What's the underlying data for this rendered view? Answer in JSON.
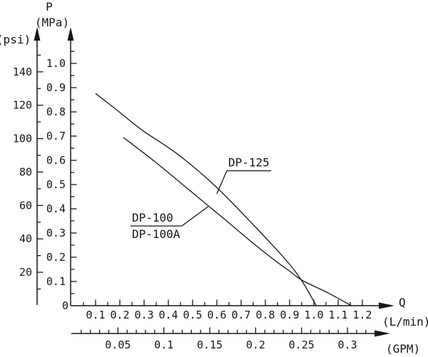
{
  "page": {
    "background": "#ffffff",
    "ink": "#161616"
  },
  "chart_data": {
    "type": "line",
    "title": "",
    "description": "Pump pressure vs flow performance curves",
    "grid": "off",
    "legend_position": "inline-labels-with-leader-lines",
    "origin_label": "0",
    "y_axis_primary": {
      "name": "P",
      "unit": "(MPa)",
      "range": [
        0,
        1.08
      ],
      "major_tick_values": [
        0.1,
        0.2,
        0.3,
        0.4,
        0.5,
        0.6,
        0.7,
        0.8,
        0.9,
        1.0
      ],
      "major_tick_labels": [
        "0.1",
        "0.2",
        "0.3",
        "0.4",
        "0.5",
        "0.6",
        "0.7",
        "0.8",
        "0.9",
        "1.0"
      ],
      "minor_start": 0.05,
      "minor_step": 0.1,
      "minor_end": 1.05
    },
    "y_axis_secondary": {
      "unit": "(psi)",
      "range": [
        0,
        155
      ],
      "major_tick_values": [
        20,
        40,
        60,
        80,
        100,
        120,
        140
      ],
      "major_tick_labels": [
        "20",
        "40",
        "60",
        "80",
        "100",
        "120",
        "140"
      ],
      "minor_start": 10,
      "minor_step": 20,
      "minor_end": 150,
      "psi_per_mpa": 145.038
    },
    "x_axis_primary": {
      "name": "Q",
      "unit": "(L/min)",
      "range": [
        0,
        1.27
      ],
      "major_tick_values": [
        0.1,
        0.2,
        0.3,
        0.4,
        0.5,
        0.6,
        0.7,
        0.8,
        0.9,
        1.0,
        1.1,
        1.2
      ],
      "major_tick_labels": [
        "0.1",
        "0.2",
        "0.3",
        "0.4",
        "0.5",
        "0.6",
        "0.7",
        "0.8",
        "0.9",
        "1.0",
        "1.1",
        "1.2"
      ],
      "minor_start": 0.05,
      "minor_step": 0.1,
      "minor_end": 1.15
    },
    "x_axis_secondary": {
      "unit": "(GPM)",
      "range": [
        0,
        0.335
      ],
      "major_tick_values": [
        0.05,
        0.1,
        0.15,
        0.2,
        0.25,
        0.3
      ],
      "major_tick_labels": [
        "0.05",
        "0.1",
        "0.15",
        "0.2",
        "0.25",
        "0.3"
      ],
      "minor_start": 0.01,
      "minor_step": 0.01,
      "minor_end": 0.32,
      "lmin_per_gpm": 3.785
    },
    "series": [
      {
        "name": "DP-125",
        "points_q_lmin_p_mpa": [
          [
            0.1,
            0.876
          ],
          [
            0.19,
            0.806
          ],
          [
            0.29,
            0.726
          ],
          [
            0.44,
            0.624
          ],
          [
            0.59,
            0.497
          ],
          [
            0.735,
            0.35
          ],
          [
            0.88,
            0.194
          ],
          [
            0.95,
            0.103
          ],
          [
            1.01,
            0.0
          ]
        ]
      },
      {
        "name": "DP-100 / DP-100A",
        "points_q_lmin_p_mpa": [
          [
            0.215,
            0.694
          ],
          [
            0.345,
            0.594
          ],
          [
            0.49,
            0.474
          ],
          [
            0.64,
            0.35
          ],
          [
            0.735,
            0.27
          ],
          [
            0.83,
            0.194
          ],
          [
            0.91,
            0.135
          ],
          [
            0.955,
            0.103
          ],
          [
            1.06,
            0.052
          ],
          [
            1.155,
            0.0
          ]
        ]
      }
    ],
    "series_labels": [
      {
        "lines": [
          "DP-125"
        ],
        "attach_point_q_p": [
          0.6,
          0.462
        ],
        "label_anchor_q_p": [
          0.641,
          0.557
        ],
        "leader_from": "left"
      },
      {
        "lines": [
          "DP-100",
          "DP-100A"
        ],
        "attach_point_q_p": [
          0.565,
          0.41
        ],
        "label_anchor_q_p": [
          0.244,
          0.329
        ],
        "leader_from": "right"
      }
    ]
  }
}
